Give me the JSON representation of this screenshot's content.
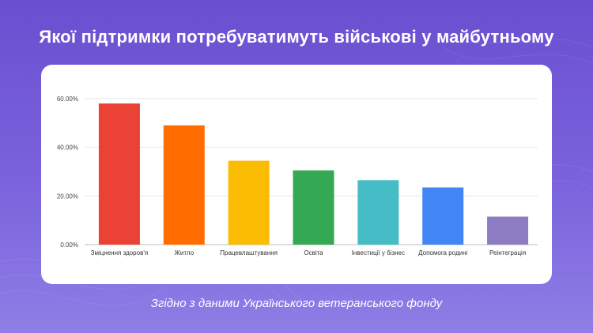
{
  "title": "Якої підтримки потребуватимуть військові у майбутньому",
  "footer": "Згідно з даними Українського ветеранського фонду",
  "chart_data": {
    "type": "bar",
    "title": "Якої підтримки потребуватимуть військові у майбутньому",
    "categories": [
      "Зміцнення здоров'я",
      "Житло",
      "Працевлаштування",
      "Освіта",
      "Інвестиції у бізнес",
      "Допомога родині",
      "Реінтеграція"
    ],
    "values": [
      58.0,
      49.0,
      34.5,
      30.5,
      26.5,
      23.5,
      11.5
    ],
    "colors": [
      "#ea4335",
      "#ff6d01",
      "#fbbc04",
      "#34a853",
      "#46bdc6",
      "#4285f4",
      "#8e7cc3"
    ],
    "ylim": [
      0,
      60
    ],
    "yticks": [
      "0.00%",
      "20.00%",
      "40.00%",
      "60.00%"
    ],
    "ytick_values": [
      0,
      20,
      40,
      60
    ],
    "xlabel": "",
    "ylabel": "",
    "grid": true
  }
}
